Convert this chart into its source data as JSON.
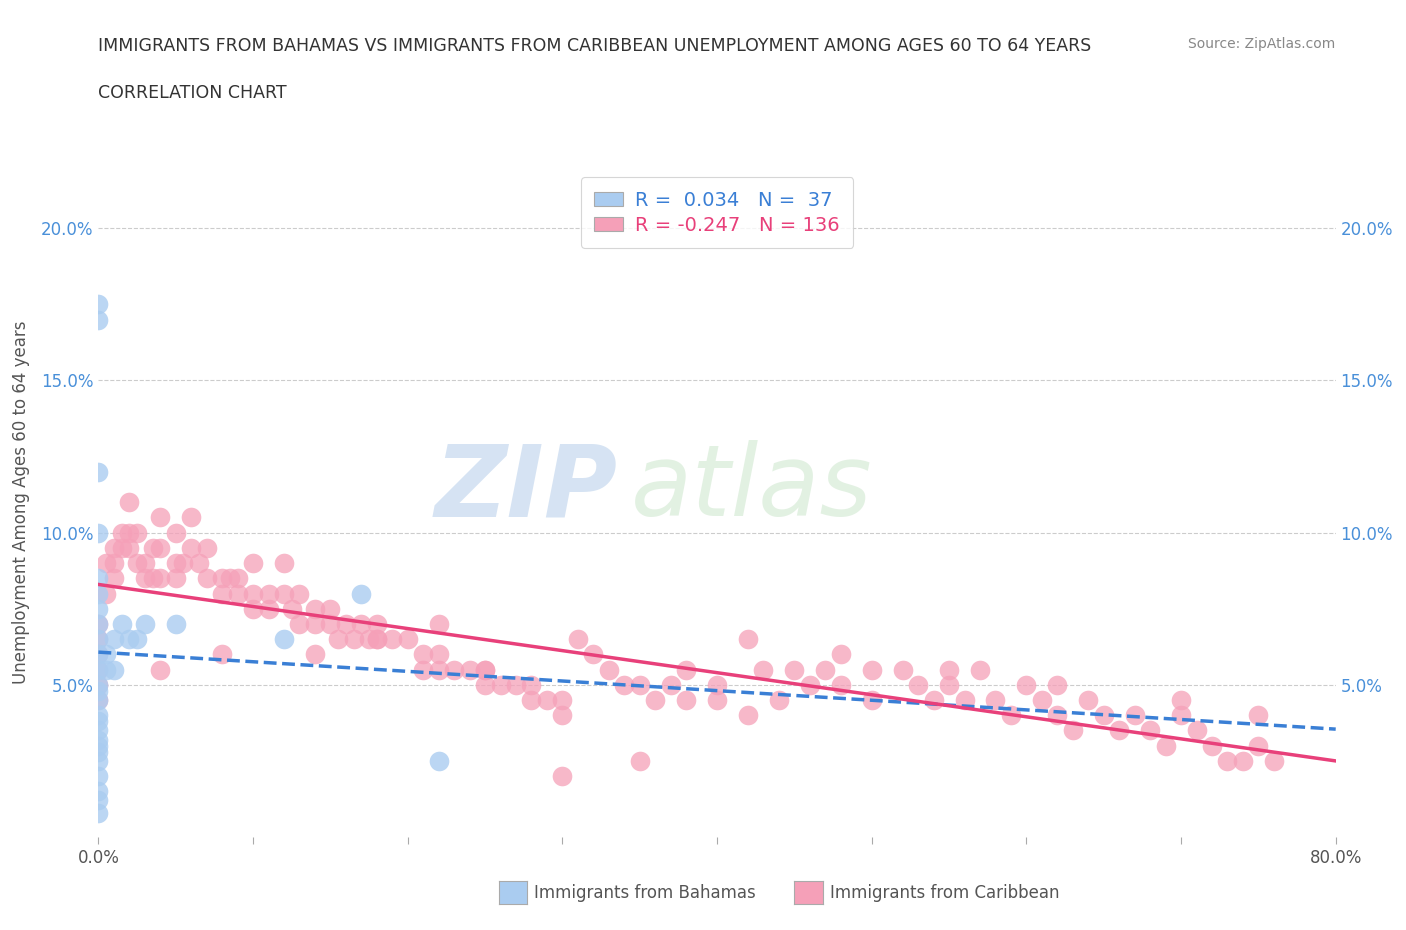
{
  "title_line1": "IMMIGRANTS FROM BAHAMAS VS IMMIGRANTS FROM CARIBBEAN UNEMPLOYMENT AMONG AGES 60 TO 64 YEARS",
  "title_line2": "CORRELATION CHART",
  "source_text": "Source: ZipAtlas.com",
  "ylabel": "Unemployment Among Ages 60 to 64 years",
  "xlim": [
    0.0,
    0.8
  ],
  "ylim": [
    0.0,
    0.22
  ],
  "x_ticks": [
    0.0,
    0.1,
    0.2,
    0.3,
    0.4,
    0.5,
    0.6,
    0.7,
    0.8
  ],
  "y_ticks": [
    0.0,
    0.05,
    0.1,
    0.15,
    0.2
  ],
  "bahamas_color": "#aaccf0",
  "caribbean_color": "#f5a0b8",
  "bahamas_line_color": "#3a7fd5",
  "caribbean_line_color": "#e8407a",
  "legend_R_bahamas": "0.034",
  "legend_N_bahamas": "37",
  "legend_R_caribbean": "-0.247",
  "legend_N_caribbean": "136",
  "legend_label_bahamas": "Immigrants from Bahamas",
  "legend_label_caribbean": "Immigrants from Caribbean",
  "watermark_zip": "ZIP",
  "watermark_atlas": "atlas",
  "grid_color": "#cccccc",
  "background_color": "#ffffff",
  "bahamas_x": [
    0.0,
    0.0,
    0.0,
    0.0,
    0.0,
    0.0,
    0.0,
    0.0,
    0.0,
    0.0,
    0.0,
    0.0,
    0.0,
    0.0,
    0.0,
    0.0,
    0.0,
    0.0,
    0.0,
    0.0,
    0.0,
    0.0,
    0.0,
    0.0,
    0.0,
    0.005,
    0.005,
    0.01,
    0.01,
    0.015,
    0.02,
    0.025,
    0.03,
    0.05,
    0.12,
    0.17,
    0.22
  ],
  "bahamas_y": [
    0.175,
    0.17,
    0.12,
    0.1,
    0.085,
    0.08,
    0.075,
    0.07,
    0.065,
    0.06,
    0.055,
    0.05,
    0.048,
    0.045,
    0.04,
    0.038,
    0.035,
    0.032,
    0.03,
    0.028,
    0.025,
    0.02,
    0.015,
    0.012,
    0.008,
    0.06,
    0.055,
    0.065,
    0.055,
    0.07,
    0.065,
    0.065,
    0.07,
    0.07,
    0.065,
    0.08,
    0.025
  ],
  "caribbean_x": [
    0.0,
    0.0,
    0.0,
    0.0,
    0.0,
    0.0,
    0.005,
    0.005,
    0.01,
    0.01,
    0.01,
    0.015,
    0.015,
    0.02,
    0.02,
    0.02,
    0.025,
    0.025,
    0.03,
    0.03,
    0.035,
    0.035,
    0.04,
    0.04,
    0.04,
    0.05,
    0.05,
    0.05,
    0.055,
    0.06,
    0.06,
    0.065,
    0.07,
    0.07,
    0.08,
    0.08,
    0.085,
    0.09,
    0.09,
    0.1,
    0.1,
    0.1,
    0.11,
    0.11,
    0.12,
    0.12,
    0.125,
    0.13,
    0.13,
    0.14,
    0.14,
    0.15,
    0.15,
    0.155,
    0.16,
    0.165,
    0.17,
    0.175,
    0.18,
    0.18,
    0.19,
    0.2,
    0.21,
    0.21,
    0.22,
    0.22,
    0.23,
    0.24,
    0.25,
    0.25,
    0.26,
    0.27,
    0.28,
    0.28,
    0.29,
    0.3,
    0.3,
    0.31,
    0.32,
    0.33,
    0.34,
    0.35,
    0.36,
    0.37,
    0.38,
    0.38,
    0.4,
    0.4,
    0.42,
    0.43,
    0.44,
    0.45,
    0.46,
    0.47,
    0.48,
    0.5,
    0.5,
    0.52,
    0.53,
    0.54,
    0.55,
    0.56,
    0.57,
    0.58,
    0.59,
    0.6,
    0.61,
    0.62,
    0.63,
    0.64,
    0.65,
    0.66,
    0.67,
    0.68,
    0.69,
    0.7,
    0.71,
    0.72,
    0.73,
    0.74,
    0.75,
    0.76,
    0.3,
    0.35,
    0.42,
    0.48,
    0.55,
    0.62,
    0.7,
    0.75,
    0.22,
    0.18,
    0.08,
    0.04,
    0.14,
    0.25
  ],
  "caribbean_y": [
    0.07,
    0.065,
    0.06,
    0.055,
    0.05,
    0.045,
    0.09,
    0.08,
    0.095,
    0.09,
    0.085,
    0.1,
    0.095,
    0.11,
    0.1,
    0.095,
    0.1,
    0.09,
    0.09,
    0.085,
    0.095,
    0.085,
    0.105,
    0.095,
    0.085,
    0.1,
    0.09,
    0.085,
    0.09,
    0.105,
    0.095,
    0.09,
    0.095,
    0.085,
    0.085,
    0.08,
    0.085,
    0.085,
    0.08,
    0.09,
    0.08,
    0.075,
    0.08,
    0.075,
    0.09,
    0.08,
    0.075,
    0.08,
    0.07,
    0.075,
    0.07,
    0.075,
    0.07,
    0.065,
    0.07,
    0.065,
    0.07,
    0.065,
    0.07,
    0.065,
    0.065,
    0.065,
    0.06,
    0.055,
    0.06,
    0.055,
    0.055,
    0.055,
    0.055,
    0.05,
    0.05,
    0.05,
    0.05,
    0.045,
    0.045,
    0.045,
    0.04,
    0.065,
    0.06,
    0.055,
    0.05,
    0.05,
    0.045,
    0.05,
    0.055,
    0.045,
    0.05,
    0.045,
    0.04,
    0.055,
    0.045,
    0.055,
    0.05,
    0.055,
    0.05,
    0.055,
    0.045,
    0.055,
    0.05,
    0.045,
    0.05,
    0.045,
    0.055,
    0.045,
    0.04,
    0.05,
    0.045,
    0.04,
    0.035,
    0.045,
    0.04,
    0.035,
    0.04,
    0.035,
    0.03,
    0.04,
    0.035,
    0.03,
    0.025,
    0.025,
    0.03,
    0.025,
    0.02,
    0.025,
    0.065,
    0.06,
    0.055,
    0.05,
    0.045,
    0.04,
    0.07,
    0.065,
    0.06,
    0.055,
    0.06,
    0.055
  ]
}
